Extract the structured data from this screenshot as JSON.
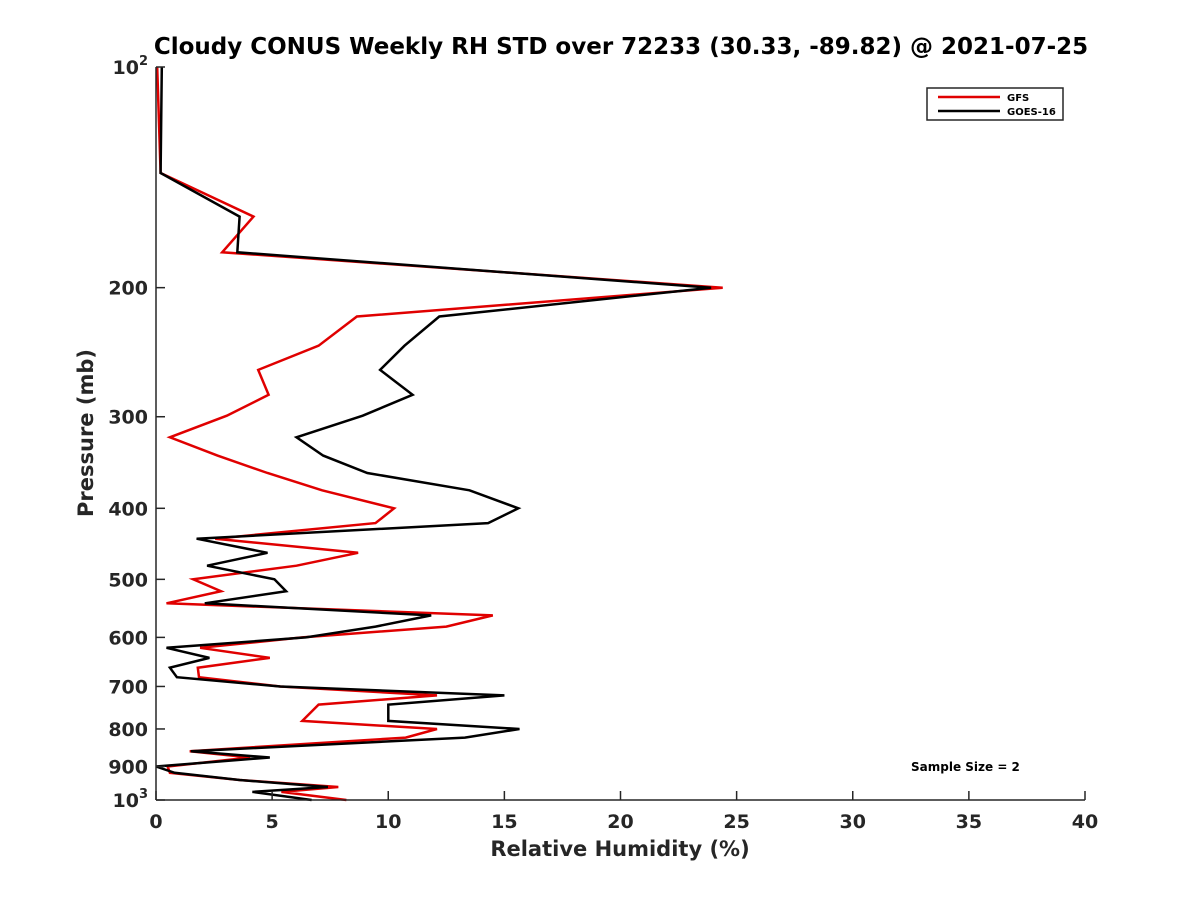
{
  "chart_data": {
    "type": "line",
    "title": "Cloudy CONUS Weekly RH STD over 72233 (30.33, -89.82) @ 2021-07-25",
    "xlabel": "Relative Humidity (%)",
    "ylabel": "Pressure (mb)",
    "xlim": [
      0,
      40
    ],
    "ylim": [
      100,
      1000
    ],
    "yscale": "log",
    "yreversed": true,
    "grid": false,
    "x_ticks": [
      0,
      5,
      10,
      15,
      20,
      25,
      30,
      35,
      40
    ],
    "x_tick_labels": [
      "0",
      "5",
      "10",
      "15",
      "20",
      "25",
      "30",
      "35",
      "40"
    ],
    "y_ticks": [
      {
        "value": 100,
        "base": "10",
        "exp": "2"
      },
      {
        "value": 200,
        "label": "200"
      },
      {
        "value": 300,
        "label": "300"
      },
      {
        "value": 400,
        "label": "400"
      },
      {
        "value": 500,
        "label": "500"
      },
      {
        "value": 600,
        "label": "600"
      },
      {
        "value": 700,
        "label": "700"
      },
      {
        "value": 800,
        "label": "800"
      },
      {
        "value": 900,
        "label": "900"
      },
      {
        "value": 1000,
        "base": "10",
        "exp": "3"
      }
    ],
    "pressure_levels": [
      100,
      139.5,
      160,
      179,
      200,
      219,
      240,
      259,
      280,
      299,
      320,
      339,
      358,
      378,
      400,
      419,
      440,
      460,
      479,
      500,
      519,
      539,
      560,
      580,
      600,
      620,
      640,
      660,
      680,
      700,
      720,
      741,
      780,
      800,
      822,
      858,
      875,
      900,
      918,
      939,
      960,
      975,
      1000
    ],
    "series": [
      {
        "name": "GFS",
        "color": "#e00000",
        "values": [
          0.05,
          0.2,
          4.2,
          2.85,
          24.4,
          8.65,
          7.0,
          4.4,
          4.85,
          3.05,
          0.6,
          2.65,
          4.8,
          7.15,
          10.25,
          9.45,
          2.55,
          8.7,
          6.05,
          1.6,
          2.8,
          0.45,
          14.5,
          12.5,
          6.3,
          1.9,
          4.9,
          1.8,
          1.85,
          5.35,
          12.1,
          7.0,
          6.3,
          12.1,
          10.75,
          1.45,
          4.05,
          0.5,
          0.6,
          3.6,
          7.85,
          5.4,
          8.2
        ]
      },
      {
        "name": "GOES-16",
        "color": "#000000",
        "values": [
          0.25,
          0.2,
          3.6,
          3.5,
          23.9,
          12.2,
          10.7,
          9.65,
          11.05,
          8.9,
          6.05,
          7.2,
          9.1,
          13.5,
          15.6,
          14.3,
          1.75,
          4.8,
          2.2,
          5.1,
          5.6,
          2.1,
          11.85,
          9.45,
          6.45,
          0.45,
          2.3,
          0.6,
          0.9,
          5.35,
          15.0,
          10.0,
          10.0,
          15.65,
          13.3,
          1.5,
          4.9,
          0.0,
          0.8,
          3.6,
          7.4,
          4.15,
          6.7
        ]
      }
    ],
    "legend": {
      "position": "top-right",
      "entries": [
        "GFS",
        "GOES-16"
      ]
    },
    "annotations": [
      "Sample Size = 2"
    ]
  }
}
